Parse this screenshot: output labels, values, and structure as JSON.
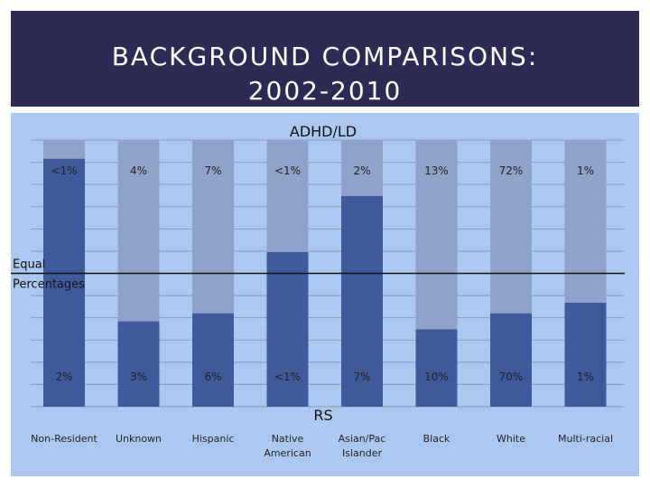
{
  "slide": {
    "title_line1": "BACKGROUND COMPARISONS:",
    "title_line2": "2002-2010"
  },
  "chart_data": {
    "type": "bar",
    "stacked_to_100": true,
    "categories": [
      "Non-Resident",
      "Unknown",
      "Hispanic",
      "Native American",
      "Asian/Pac Islander",
      "Black",
      "White",
      "Multi-racial"
    ],
    "category_lines": [
      [
        "Non-Resident"
      ],
      [
        "Unknown"
      ],
      [
        "Hispanic"
      ],
      [
        "Native",
        "American"
      ],
      [
        "Asian/Pac",
        "Islander"
      ],
      [
        "Black"
      ],
      [
        "White"
      ],
      [
        "Multi-racial"
      ]
    ],
    "series": [
      {
        "name": "RS",
        "color": "#3d5a99",
        "labels": [
          "2%",
          "3%",
          "6%",
          "<1%",
          "7%",
          "10%",
          "70%",
          "1%"
        ],
        "share_of_bar": [
          0.93,
          0.32,
          0.35,
          0.58,
          0.79,
          0.29,
          0.35,
          0.39
        ]
      },
      {
        "name": "ADHD/LD",
        "color": "#8fa2c8",
        "labels": [
          "<1%",
          "4%",
          "7%",
          "<1%",
          "2%",
          "13%",
          "72%",
          "1%"
        ],
        "share_of_bar": [
          0.07,
          0.68,
          0.65,
          0.42,
          0.21,
          0.71,
          0.65,
          0.61
        ]
      }
    ],
    "reference_line": {
      "label": [
        "Equal",
        "Percentages"
      ],
      "value": 0.5
    },
    "grid": true,
    "legend": "none"
  }
}
